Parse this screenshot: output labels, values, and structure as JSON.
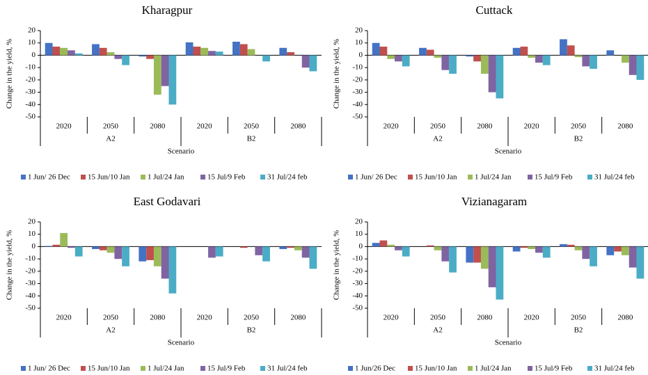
{
  "chart_data": [
    {
      "type": "bar",
      "title": "Kharagpur",
      "ylabel": "Change in the yield, %",
      "xlabel": "Scenario",
      "categories": [
        "2020",
        "2050",
        "2080",
        "2020",
        "2050",
        "2080"
      ],
      "groups": [
        "A2",
        "B2"
      ],
      "ylim": [
        -50,
        20
      ],
      "yticks": [
        -50,
        -40,
        -30,
        -20,
        -10,
        0,
        10,
        20
      ],
      "series": [
        {
          "name": "1 Jun/ 26 Dec",
          "color": "#4472c4",
          "values": [
            10,
            9,
            -1,
            10.5,
            11,
            6
          ]
        },
        {
          "name": "15 Jun/10 Jan",
          "color": "#c0504d",
          "values": [
            7,
            6,
            -3,
            7,
            9,
            2.5
          ]
        },
        {
          "name": "1 Jul/24 Jan",
          "color": "#9bbb59",
          "values": [
            6,
            2.5,
            -32,
            6,
            5,
            0
          ]
        },
        {
          "name": "15 Jul/9 Feb",
          "color": "#8064a2",
          "values": [
            4,
            -3,
            -25,
            3.5,
            0,
            -10
          ]
        },
        {
          "name": "31 Jul/24 feb",
          "color": "#4bacc6",
          "values": [
            1.5,
            -8,
            -40,
            3,
            -5,
            -13
          ]
        }
      ]
    },
    {
      "type": "bar",
      "title": "Cuttack",
      "ylabel": "Change in the yield, %",
      "xlabel": "Scenario",
      "categories": [
        "2020",
        "2050",
        "2080",
        "2020",
        "2050",
        "2080"
      ],
      "groups": [
        "A2",
        "B2"
      ],
      "ylim": [
        -50,
        20
      ],
      "yticks": [
        -50,
        -40,
        -30,
        -20,
        -10,
        0,
        10,
        20
      ],
      "series": [
        {
          "name": "1 Jun/ 26 Dec",
          "color": "#4472c4",
          "values": [
            10,
            6,
            -1,
            6,
            13,
            4
          ]
        },
        {
          "name": "15 Jun/10 Jan",
          "color": "#c0504d",
          "values": [
            7,
            4.5,
            -5,
            7,
            8,
            0
          ]
        },
        {
          "name": "1 Jul/24 Jan",
          "color": "#9bbb59",
          "values": [
            -3,
            -2,
            -15,
            -2,
            -1.5,
            -6
          ]
        },
        {
          "name": "15 Jul/9 Feb",
          "color": "#8064a2",
          "values": [
            -5,
            -12,
            -30,
            -6,
            -9,
            -16
          ]
        },
        {
          "name": "31 Jul/24 feb",
          "color": "#4bacc6",
          "values": [
            -9,
            -15,
            -35,
            -8,
            -11,
            -20
          ]
        }
      ]
    },
    {
      "type": "bar",
      "title": "East Godavari",
      "ylabel": "Change in the yield, %",
      "xlabel": "Scenario",
      "categories": [
        "2020",
        "2050",
        "2080",
        "2020",
        "2050",
        "2080"
      ],
      "groups": [
        "A2",
        "B2"
      ],
      "ylim": [
        -50,
        20
      ],
      "yticks": [
        -50,
        -40,
        -30,
        -20,
        -10,
        0,
        10,
        20
      ],
      "series": [
        {
          "name": "1 Jun/ 26 Dec",
          "color": "#4472c4",
          "values": [
            0.5,
            -2,
            -12,
            0,
            0,
            -2
          ]
        },
        {
          "name": "15 Jun/10 Jan",
          "color": "#c0504d",
          "values": [
            1.5,
            -3,
            -11,
            0,
            -1,
            -1
          ]
        },
        {
          "name": "1 Jul/24 Jan",
          "color": "#9bbb59",
          "values": [
            11,
            -5,
            -16,
            0,
            0,
            -3
          ]
        },
        {
          "name": "15 Jul/9 Feb",
          "color": "#8064a2",
          "values": [
            -1,
            -10,
            -26,
            -9,
            -7,
            -9
          ]
        },
        {
          "name": "31 Jul/24 feb",
          "color": "#4bacc6",
          "values": [
            -8,
            -16,
            -38,
            -8,
            -12,
            -18
          ]
        }
      ]
    },
    {
      "type": "bar",
      "title": "Vizianagaram",
      "ylabel": "Change in the yield, %",
      "xlabel": "Scenario",
      "categories": [
        "2020",
        "2050",
        "2080",
        "2020",
        "2050",
        "2080"
      ],
      "groups": [
        "A2",
        "B2"
      ],
      "ylim": [
        -50,
        20
      ],
      "yticks": [
        -50,
        -40,
        -30,
        -20,
        -10,
        0,
        10,
        20
      ],
      "series": [
        {
          "name": "1 Jun/26 Dec",
          "color": "#4472c4",
          "values": [
            3,
            0,
            -13,
            -4,
            2,
            -7
          ]
        },
        {
          "name": "15 Jun/10 Jan",
          "color": "#c0504d",
          "values": [
            5,
            1,
            -13,
            -1,
            1.5,
            -4
          ]
        },
        {
          "name": "1 Jul/24 Jan",
          "color": "#9bbb59",
          "values": [
            1.5,
            -3,
            -18,
            -2,
            -3,
            -7
          ]
        },
        {
          "name": "15 Jul/9 Feb",
          "color": "#8064a2",
          "values": [
            -3,
            -12,
            -33,
            -5,
            -10,
            -17
          ]
        },
        {
          "name": "31 Jul/24 feb",
          "color": "#4bacc6",
          "values": [
            -8,
            -21,
            -43,
            -9,
            -16,
            -26
          ]
        }
      ]
    }
  ]
}
